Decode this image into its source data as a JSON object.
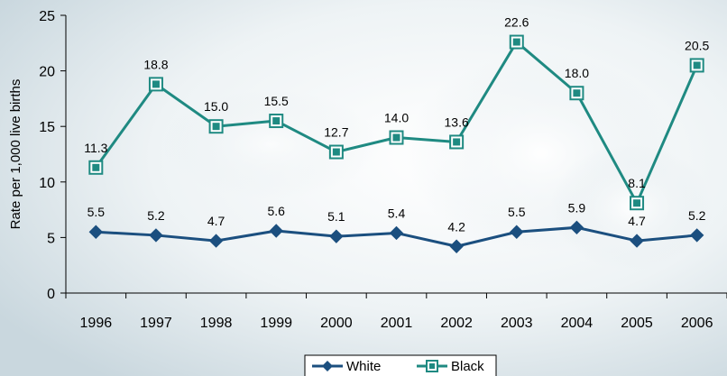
{
  "chart_data": {
    "type": "line",
    "title": "",
    "xlabel": "",
    "ylabel": "Rate per 1,000 live births",
    "categories": [
      "1996",
      "1997",
      "1998",
      "1999",
      "2000",
      "2001",
      "2002",
      "2003",
      "2004",
      "2005",
      "2006"
    ],
    "ylim": [
      0,
      25
    ],
    "yticks": [
      0,
      5,
      10,
      15,
      20,
      25
    ],
    "grid": false,
    "legend_position": "bottom-center",
    "series": [
      {
        "name": "White",
        "values": [
          5.5,
          5.2,
          4.7,
          5.6,
          5.1,
          5.4,
          4.2,
          5.5,
          5.9,
          4.7,
          5.2
        ],
        "labels": [
          "5.5",
          "5.2",
          "4.7",
          "5.6",
          "5.1",
          "5.4",
          "4.2",
          "5.5",
          "5.9",
          "4.7",
          "5.2"
        ],
        "color": "#1b4f7f",
        "marker": "diamond"
      },
      {
        "name": "Black",
        "values": [
          11.3,
          18.8,
          15.0,
          15.5,
          12.7,
          14.0,
          13.6,
          22.6,
          18.0,
          8.1,
          20.5
        ],
        "labels": [
          "11.3",
          "18.8",
          "15.0",
          "15.5",
          "12.7",
          "14.0",
          "13.6",
          "22.6",
          "18.0",
          "8.1",
          "20.5"
        ],
        "color": "#1f8a82",
        "marker": "square"
      }
    ]
  }
}
